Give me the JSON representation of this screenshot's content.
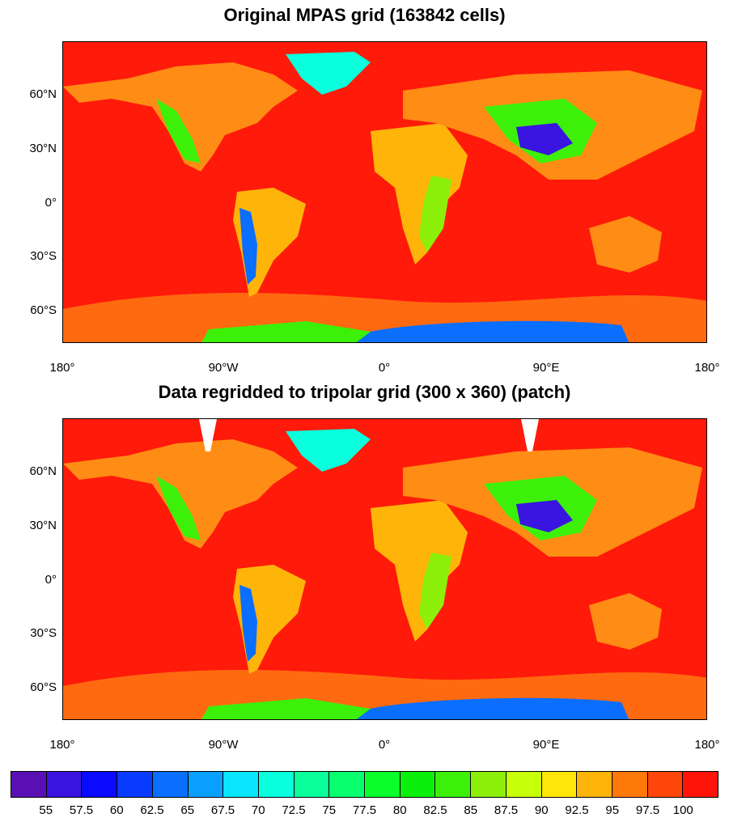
{
  "panels": [
    {
      "title": "Original MPAS grid (163842 cells)"
    },
    {
      "title": "Data regridded to tripolar grid (300 x 360) (patch)"
    }
  ],
  "lat_labels": [
    "60°N",
    "30°N",
    "0°",
    "30°S",
    "60°S"
  ],
  "lon_labels": [
    "180°",
    "90°W",
    "0°",
    "90°E",
    "180°"
  ],
  "colorbar": {
    "labels": [
      "55",
      "57.5",
      "60",
      "62.5",
      "65",
      "67.5",
      "70",
      "72.5",
      "75",
      "77.5",
      "80",
      "82.5",
      "85",
      "87.5",
      "90",
      "92.5",
      "95",
      "97.5",
      "100"
    ],
    "colors": [
      "#5a0fb4",
      "#3a14e0",
      "#0a0aff",
      "#0a3cff",
      "#0a6eff",
      "#0aa0ff",
      "#0ae6ff",
      "#0affdc",
      "#0aff9b",
      "#0aff6e",
      "#0aff2d",
      "#0af00a",
      "#3cf00a",
      "#8cf00a",
      "#c8ff0a",
      "#ffe60a",
      "#ffb40a",
      "#ff780a",
      "#ff460a",
      "#ff140a"
    ]
  },
  "map_colors": {
    "ocean": "#ff1a0a",
    "land_warm": "#ff7814",
    "land_mid": "#ffb40a",
    "land_green": "#3cf00a",
    "land_cyan": "#0affdc",
    "land_blue": "#0a6eff",
    "land_deep": "#3a14e0"
  }
}
